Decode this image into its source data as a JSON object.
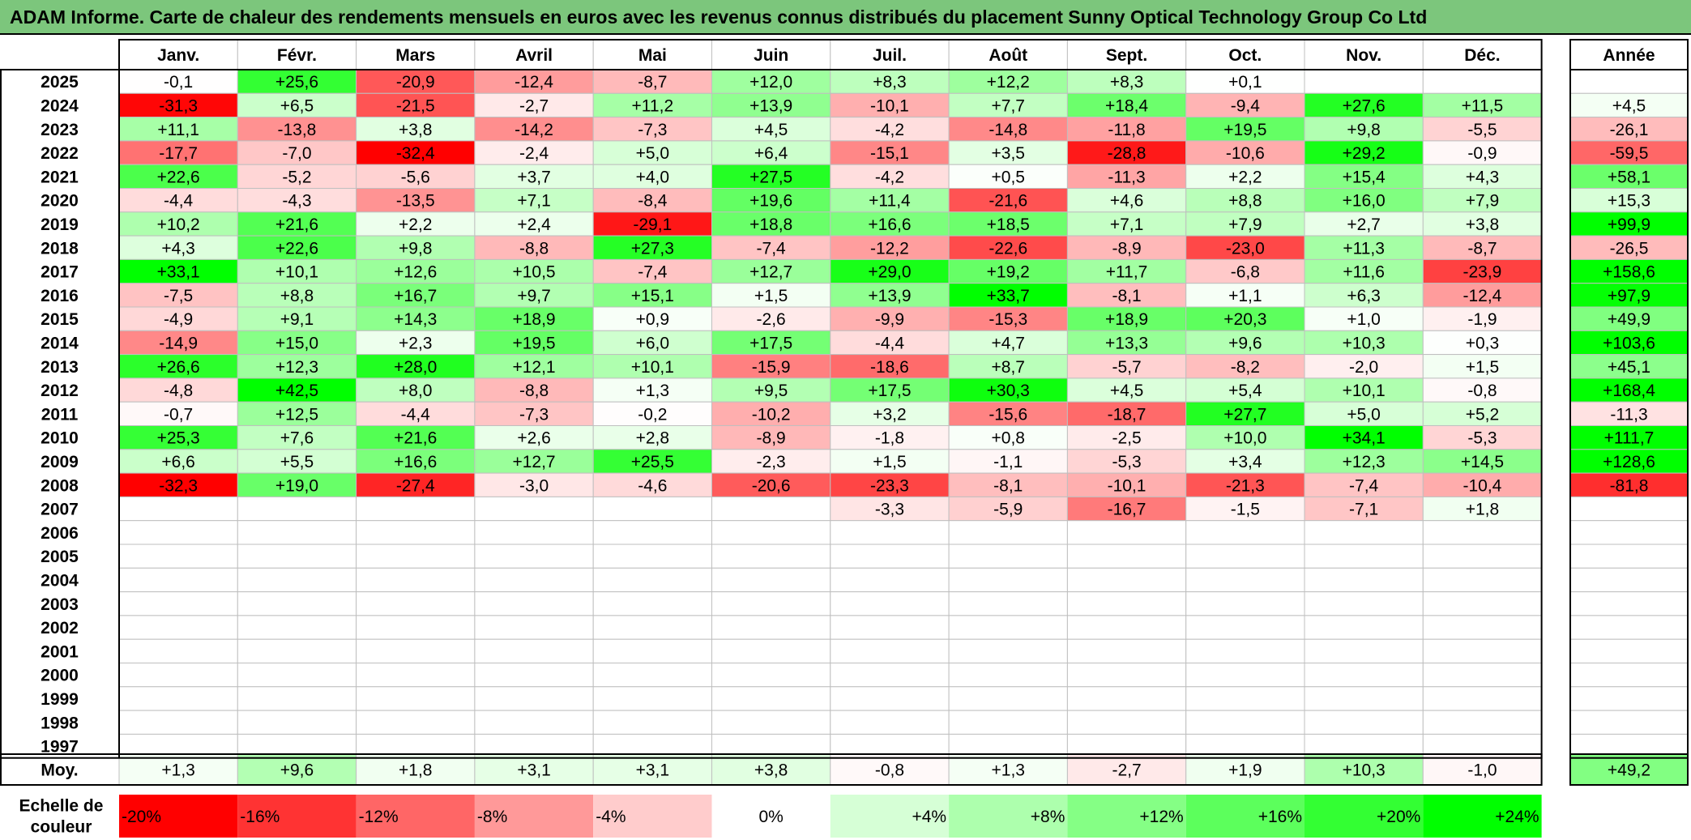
{
  "title": "ADAM Informe. Carte de chaleur des rendements mensuels en euros avec les revenus connus distribués du placement Sunny Optical Technology Group Co Ltd",
  "chart_data": {
    "type": "heatmap",
    "months": [
      "Janv.",
      "Févr.",
      "Mars",
      "Avril",
      "Mai",
      "Juin",
      "Juil.",
      "Août",
      "Sept.",
      "Oct.",
      "Nov.",
      "Déc."
    ],
    "year_column_label": "Année",
    "rows": [
      {
        "year": "2025",
        "values": [
          -0.1,
          25.6,
          -20.9,
          -12.4,
          -8.7,
          12.0,
          8.3,
          12.2,
          8.3,
          0.1,
          null,
          null
        ],
        "annual": null
      },
      {
        "year": "2024",
        "values": [
          -31.3,
          6.5,
          -21.5,
          -2.7,
          11.2,
          13.9,
          -10.1,
          7.7,
          18.4,
          -9.4,
          27.6,
          11.5
        ],
        "annual": 4.5
      },
      {
        "year": "2023",
        "values": [
          11.1,
          -13.8,
          3.8,
          -14.2,
          -7.3,
          4.5,
          -4.2,
          -14.8,
          -11.8,
          19.5,
          9.8,
          -5.5
        ],
        "annual": -26.1
      },
      {
        "year": "2022",
        "values": [
          -17.7,
          -7.0,
          -32.4,
          -2.4,
          5.0,
          6.4,
          -15.1,
          3.5,
          -28.8,
          -10.6,
          29.2,
          -0.9
        ],
        "annual": -59.5
      },
      {
        "year": "2021",
        "values": [
          22.6,
          -5.2,
          -5.6,
          3.7,
          4.0,
          27.5,
          -4.2,
          0.5,
          -11.3,
          2.2,
          15.4,
          4.3
        ],
        "annual": 58.1
      },
      {
        "year": "2020",
        "values": [
          -4.4,
          -4.3,
          -13.5,
          7.1,
          -8.4,
          19.6,
          11.4,
          -21.6,
          4.6,
          8.8,
          16.0,
          7.9
        ],
        "annual": 15.3
      },
      {
        "year": "2019",
        "values": [
          10.2,
          21.6,
          2.2,
          2.4,
          -29.1,
          18.8,
          16.6,
          18.5,
          7.1,
          7.9,
          2.7,
          3.8
        ],
        "annual": 99.9
      },
      {
        "year": "2018",
        "values": [
          4.3,
          22.6,
          9.8,
          -8.8,
          27.3,
          -7.4,
          -12.2,
          -22.6,
          -8.9,
          -23.0,
          11.3,
          -8.7
        ],
        "annual": -26.5
      },
      {
        "year": "2017",
        "values": [
          33.1,
          10.1,
          12.6,
          10.5,
          -7.4,
          12.7,
          29.0,
          19.2,
          11.7,
          -6.8,
          11.6,
          -23.9
        ],
        "annual": 158.6
      },
      {
        "year": "2016",
        "values": [
          -7.5,
          8.8,
          16.7,
          9.7,
          15.1,
          1.5,
          13.9,
          33.7,
          -8.1,
          1.1,
          6.3,
          -12.4
        ],
        "annual": 97.9
      },
      {
        "year": "2015",
        "values": [
          -4.9,
          9.1,
          14.3,
          18.9,
          0.9,
          -2.6,
          -9.9,
          -15.3,
          18.9,
          20.3,
          1.0,
          -1.9
        ],
        "annual": 49.9
      },
      {
        "year": "2014",
        "values": [
          -14.9,
          15.0,
          2.3,
          19.5,
          6.0,
          17.5,
          -4.4,
          4.7,
          13.3,
          9.6,
          10.3,
          0.3
        ],
        "annual": 103.6
      },
      {
        "year": "2013",
        "values": [
          26.6,
          12.3,
          28.0,
          12.1,
          10.1,
          -15.9,
          -18.6,
          8.7,
          -5.7,
          -8.2,
          -2.0,
          1.5
        ],
        "annual": 45.1
      },
      {
        "year": "2012",
        "values": [
          -4.8,
          42.5,
          8.0,
          -8.8,
          1.3,
          9.5,
          17.5,
          30.3,
          4.5,
          5.4,
          10.1,
          -0.8
        ],
        "annual": 168.4
      },
      {
        "year": "2011",
        "values": [
          -0.7,
          12.5,
          -4.4,
          -7.3,
          -0.2,
          -10.2,
          3.2,
          -15.6,
          -18.7,
          27.7,
          5.0,
          5.2
        ],
        "annual": -11.3
      },
      {
        "year": "2010",
        "values": [
          25.3,
          7.6,
          21.6,
          2.6,
          2.8,
          -8.9,
          -1.8,
          0.8,
          -2.5,
          10.0,
          34.1,
          -5.3
        ],
        "annual": 111.7
      },
      {
        "year": "2009",
        "values": [
          6.6,
          5.5,
          16.6,
          12.7,
          25.5,
          -2.3,
          1.5,
          -1.1,
          -5.3,
          3.4,
          12.3,
          14.5
        ],
        "annual": 128.6
      },
      {
        "year": "2008",
        "values": [
          -32.3,
          19.0,
          -27.4,
          -3.0,
          -4.6,
          -20.6,
          -23.3,
          -8.1,
          -10.1,
          -21.3,
          -7.4,
          -10.4
        ],
        "annual": -81.8
      },
      {
        "year": "2007",
        "values": [
          null,
          null,
          null,
          null,
          null,
          null,
          -3.3,
          -5.9,
          -16.7,
          -1.5,
          -7.1,
          1.8
        ],
        "annual": null
      },
      {
        "year": "2006",
        "values": [
          null,
          null,
          null,
          null,
          null,
          null,
          null,
          null,
          null,
          null,
          null,
          null
        ],
        "annual": null
      },
      {
        "year": "2005",
        "values": [
          null,
          null,
          null,
          null,
          null,
          null,
          null,
          null,
          null,
          null,
          null,
          null
        ],
        "annual": null
      },
      {
        "year": "2004",
        "values": [
          null,
          null,
          null,
          null,
          null,
          null,
          null,
          null,
          null,
          null,
          null,
          null
        ],
        "annual": null
      },
      {
        "year": "2003",
        "values": [
          null,
          null,
          null,
          null,
          null,
          null,
          null,
          null,
          null,
          null,
          null,
          null
        ],
        "annual": null
      },
      {
        "year": "2002",
        "values": [
          null,
          null,
          null,
          null,
          null,
          null,
          null,
          null,
          null,
          null,
          null,
          null
        ],
        "annual": null
      },
      {
        "year": "2001",
        "values": [
          null,
          null,
          null,
          null,
          null,
          null,
          null,
          null,
          null,
          null,
          null,
          null
        ],
        "annual": null
      },
      {
        "year": "2000",
        "values": [
          null,
          null,
          null,
          null,
          null,
          null,
          null,
          null,
          null,
          null,
          null,
          null
        ],
        "annual": null
      },
      {
        "year": "1999",
        "values": [
          null,
          null,
          null,
          null,
          null,
          null,
          null,
          null,
          null,
          null,
          null,
          null
        ],
        "annual": null
      },
      {
        "year": "1998",
        "values": [
          null,
          null,
          null,
          null,
          null,
          null,
          null,
          null,
          null,
          null,
          null,
          null
        ],
        "annual": null
      },
      {
        "year": "1997",
        "values": [
          null,
          null,
          null,
          null,
          null,
          null,
          null,
          null,
          null,
          null,
          null,
          null
        ],
        "annual": null
      }
    ],
    "average": {
      "label": "Moy.",
      "values": [
        1.3,
        9.6,
        1.8,
        3.1,
        3.1,
        3.8,
        -0.8,
        1.3,
        -2.7,
        1.9,
        10.3,
        -1.0
      ],
      "annual": 49.2
    },
    "scale": {
      "label": "Echelle de couleur",
      "steps": [
        {
          "label": "-20%",
          "value": -20,
          "color": "#ff0000"
        },
        {
          "label": "-16%",
          "value": -16,
          "color": "#ff3333"
        },
        {
          "label": "-12%",
          "value": -12,
          "color": "#ff6666"
        },
        {
          "label": "-8%",
          "value": -8,
          "color": "#ff9999"
        },
        {
          "label": "-4%",
          "value": -4,
          "color": "#ffcccc"
        },
        {
          "label": "0%",
          "value": 0,
          "color": "#ffffff"
        },
        {
          "label": "+4%",
          "value": 4,
          "color": "#d6ffd6"
        },
        {
          "label": "+8%",
          "value": 8,
          "color": "#adffad"
        },
        {
          "label": "+12%",
          "value": 12,
          "color": "#85ff85"
        },
        {
          "label": "+16%",
          "value": 16,
          "color": "#5cff5c"
        },
        {
          "label": "+20%",
          "value": 20,
          "color": "#33ff33"
        },
        {
          "label": "+24%",
          "value": 24,
          "color": "#00ff00"
        }
      ]
    }
  },
  "colors": {
    "title_background": "#7cc67c",
    "negative": "#ff0000",
    "positive": "#00ff00",
    "neutral": "#ffffff",
    "grid": "#bfbfbf",
    "border": "#000000"
  }
}
